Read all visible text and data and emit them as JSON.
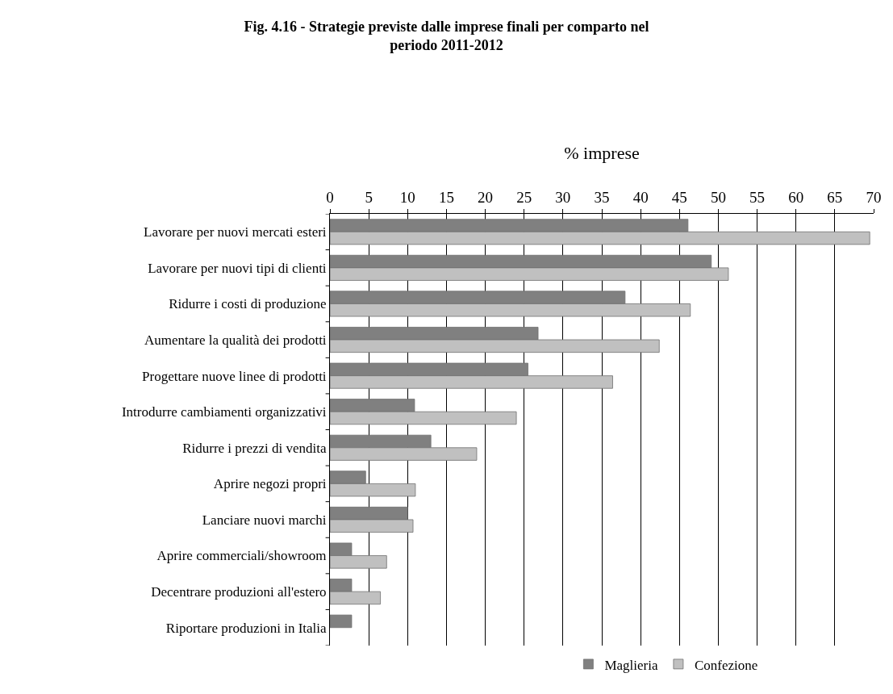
{
  "chart_data": {
    "type": "bar",
    "orientation": "horizontal",
    "title": "Fig. 4.16 - Strategie previste dalle imprese finali per comparto nel periodo 2011-2012",
    "xlabel": "% imprese",
    "categories": [
      "Lavorare per nuovi mercati esteri",
      "Lavorare per nuovi tipi di clienti",
      "Ridurre i costi di produzione",
      "Aumentare la qualità dei prodotti",
      "Progettare nuove linee di prodotti",
      "Introdurre cambiamenti organizzativi",
      "Ridurre i prezzi di vendita",
      "Aprire negozi propri",
      "Lanciare nuovi marchi",
      "Aprire commerciali/showroom",
      "Decentrare produzioni all'estero",
      "Riportare produzioni in Italia"
    ],
    "series": [
      {
        "name": "Maglieria",
        "color": "#808080",
        "values": [
          46.1,
          49.1,
          38.0,
          26.8,
          25.5,
          10.9,
          13.0,
          4.6,
          10.0,
          2.8,
          2.8,
          2.8
        ]
      },
      {
        "name": "Confezione",
        "color": "#c0c0c0",
        "values": [
          69.5,
          51.3,
          46.4,
          42.4,
          36.4,
          24.0,
          18.9,
          11.0,
          10.7,
          7.3,
          6.5,
          null
        ]
      }
    ],
    "xlim": [
      0,
      70
    ],
    "xticks": [
      0,
      5,
      10,
      15,
      20,
      25,
      30,
      35,
      40,
      45,
      50,
      55,
      60,
      65,
      70
    ],
    "grid": "x",
    "legend": "bottom"
  }
}
